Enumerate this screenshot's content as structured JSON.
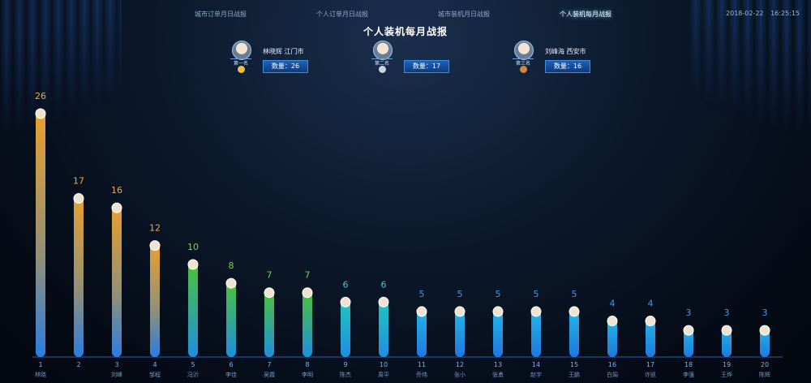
{
  "tabs": [
    {
      "label": "城市订单月日战报",
      "active": false
    },
    {
      "label": "个人订单月日战报",
      "active": false
    },
    {
      "label": "城市装机月日战报",
      "active": false
    },
    {
      "label": "个人装机每月战报",
      "active": true
    }
  ],
  "datetime": {
    "date": "2018-02-22",
    "time": "16:25:15"
  },
  "page_title": "个人装机每月战报",
  "podium": [
    {
      "rank_label": "第一名",
      "name": "林晓辉  江门市",
      "count_label": "数量：26",
      "medal_color": "#f0c040"
    },
    {
      "rank_label": "第二名",
      "name": "",
      "count_label": "数量：17",
      "medal_color": "#c8d4e0"
    },
    {
      "rank_label": "第三名",
      "name": "刘峰海  西安市",
      "count_label": "数量：16",
      "medal_color": "#d08a3a"
    }
  ],
  "chart_data": {
    "type": "bar",
    "categories": [
      "1",
      "2",
      "3",
      "4",
      "5",
      "6",
      "7",
      "8",
      "9",
      "10",
      "11",
      "12",
      "13",
      "14",
      "15",
      "16",
      "17",
      "18",
      "19",
      "20"
    ],
    "values": [
      26,
      17,
      16,
      12,
      10,
      8,
      7,
      7,
      6,
      6,
      5,
      5,
      5,
      5,
      5,
      4,
      4,
      3,
      3,
      3
    ],
    "name_labels": [
      "林晓",
      "",
      "刘峰",
      "邹程",
      "冯沂",
      "李佳",
      "吴霞",
      "李明",
      "陈杰",
      "周平",
      "乔伟",
      "张小",
      "张勇",
      "赵宇",
      "王鹏",
      "白娟",
      "许凯",
      "李强",
      "王烨",
      "陈辉"
    ],
    "ylim": [
      0,
      28
    ],
    "title": "",
    "xlabel": "",
    "ylabel": "",
    "colors": {
      "gold": "#e8a02e",
      "green": "#4cc136",
      "teal": "#20b8c4",
      "blue": "#1f8fe0",
      "label_gold": "#f2a93b",
      "label_green": "#7ed24b",
      "label_teal": "#3ad1c9",
      "label_blue": "#3f9ae8"
    }
  }
}
